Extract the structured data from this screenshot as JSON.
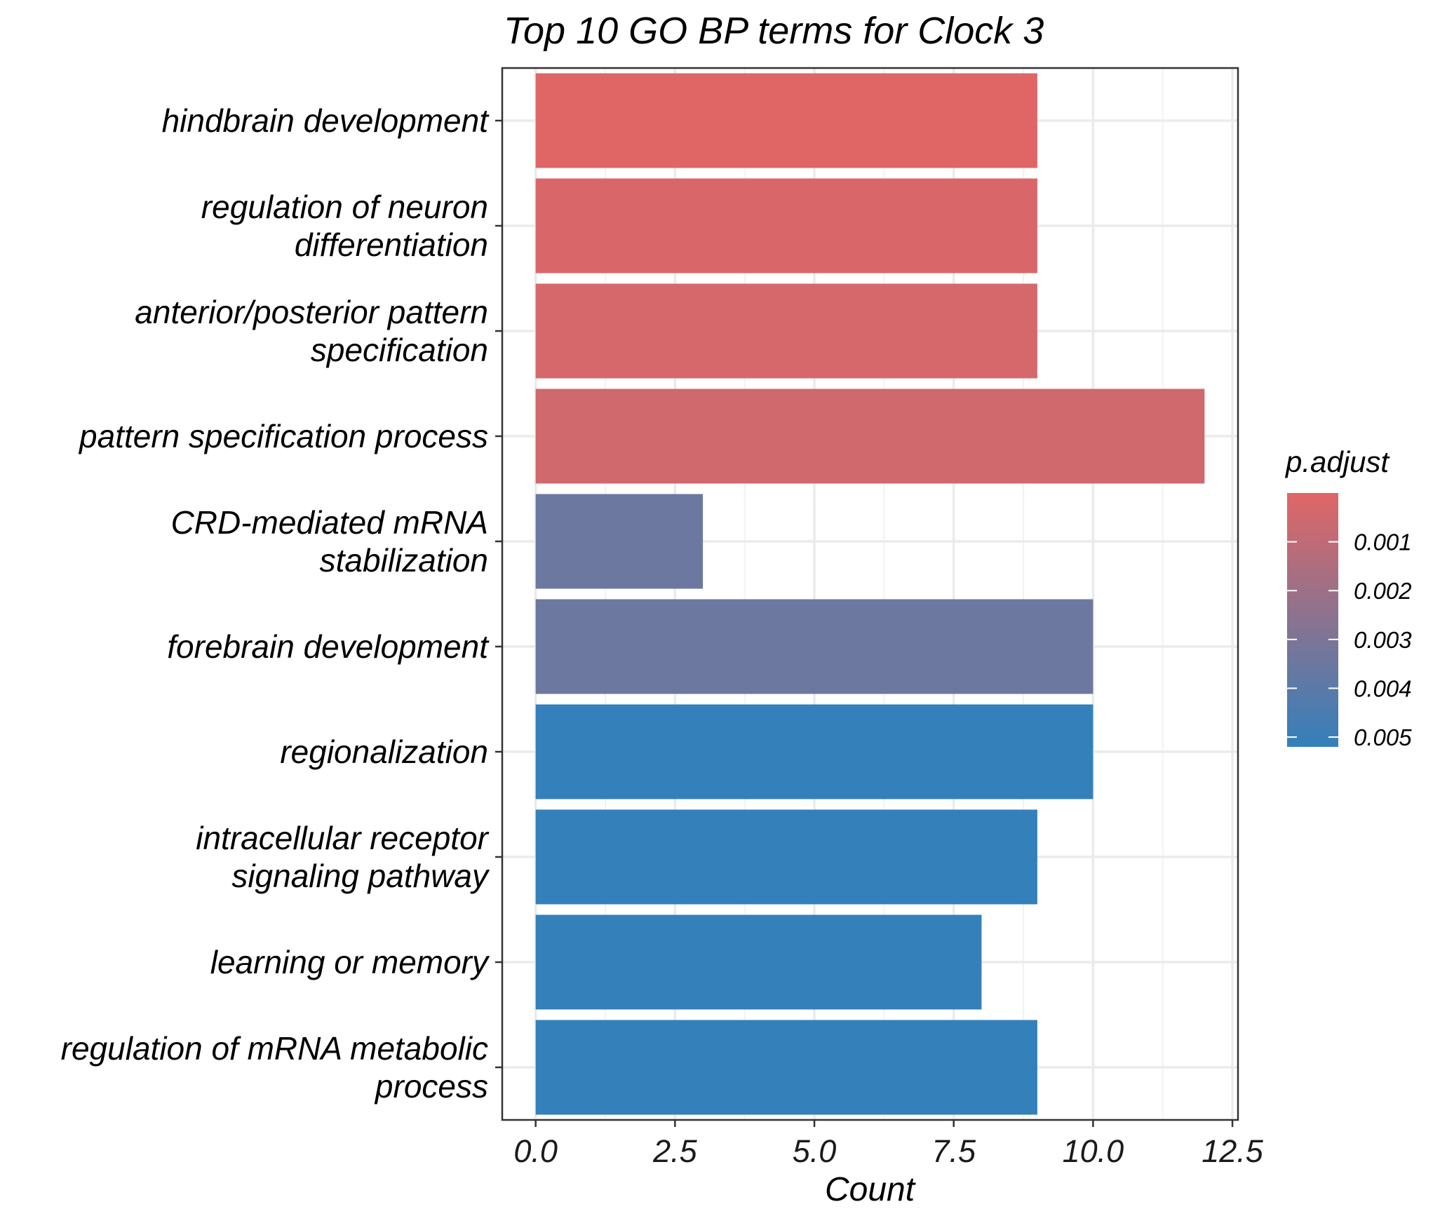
{
  "chart_data": {
    "type": "bar",
    "orientation": "horizontal",
    "title": "Top 10 GO BP terms for Clock 3",
    "xlabel": "Count",
    "ylabel": "",
    "xlim": [
      -0.6,
      12.6
    ],
    "xticks": [
      "0.0",
      "2.5",
      "5.0",
      "7.5",
      "10.0",
      "12.5"
    ],
    "xtick_values": [
      0,
      2.5,
      5,
      7.5,
      10,
      12.5
    ],
    "grid": true,
    "categories": [
      [
        "hindbrain development"
      ],
      [
        "regulation of neuron",
        "differentiation"
      ],
      [
        "anterior/posterior pattern",
        "specification"
      ],
      [
        "pattern specification process"
      ],
      [
        "CRD-mediated mRNA",
        "stabilization"
      ],
      [
        "forebrain development"
      ],
      [
        "regionalization"
      ],
      [
        "intracellular receptor",
        "signaling pathway"
      ],
      [
        "learning or memory"
      ],
      [
        "regulation of mRNA metabolic",
        "process"
      ]
    ],
    "values": [
      9,
      9,
      9,
      12,
      3,
      10,
      10,
      9,
      8,
      9
    ],
    "p_adjust": [
      0.0,
      0.0002,
      0.0003,
      0.0005,
      0.0035,
      0.0035,
      0.0052,
      0.0052,
      0.0052,
      0.0052
    ],
    "legend": {
      "title": "p.adjust",
      "position": "right",
      "ticks": [
        "0.001",
        "0.002",
        "0.003",
        "0.004",
        "0.005"
      ],
      "tick_values": [
        0.001,
        0.002,
        0.003,
        0.004,
        0.005
      ],
      "range": [
        0.0,
        0.0052
      ],
      "low_color": "#e06666",
      "high_color": "#3380bb"
    }
  }
}
